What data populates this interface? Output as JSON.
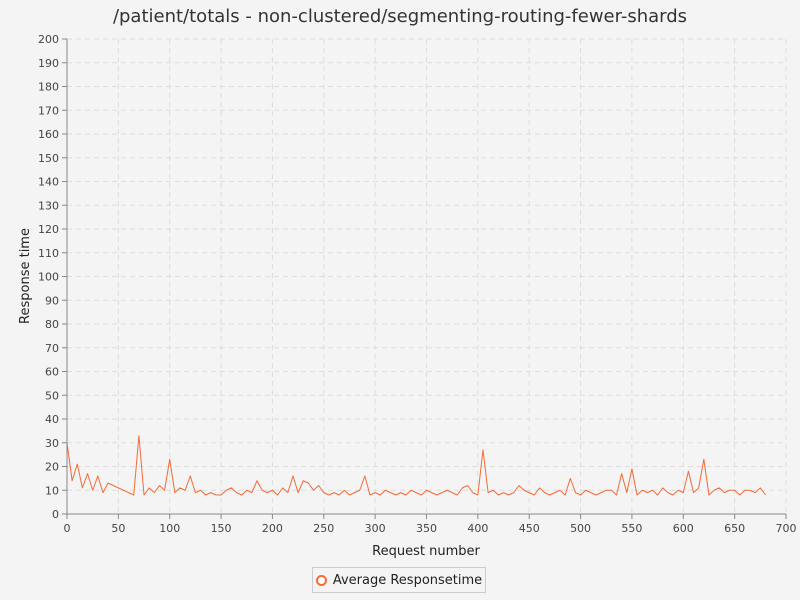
{
  "colors": {
    "series": "#f26b38",
    "grid": "#dddddd",
    "background": "#f4f4f4"
  },
  "chart_data": {
    "type": "line",
    "title": "/patient/totals - non-clustered/segmenting-routing-fewer-shards",
    "xlabel": "Request number",
    "ylabel": "Response time",
    "xlim": [
      0,
      700
    ],
    "ylim": [
      0,
      200
    ],
    "x_ticks": [
      0,
      50,
      100,
      150,
      200,
      250,
      300,
      350,
      400,
      450,
      500,
      550,
      600,
      650,
      700
    ],
    "y_ticks": [
      0,
      10,
      20,
      30,
      40,
      50,
      60,
      70,
      80,
      90,
      100,
      110,
      120,
      130,
      140,
      150,
      160,
      170,
      180,
      190,
      200
    ],
    "grid": true,
    "legend_position": "bottom-center",
    "series": [
      {
        "name": "Average Responsetime",
        "x_start": 0,
        "x_step": 5,
        "values": [
          30,
          14,
          21,
          11,
          17,
          10,
          16,
          9,
          13,
          12,
          11,
          10,
          9,
          8,
          33,
          8,
          11,
          9,
          12,
          10,
          23,
          9,
          11,
          10,
          16,
          9,
          10,
          8,
          9,
          8,
          8,
          10,
          11,
          9,
          8,
          10,
          9,
          14,
          10,
          9,
          10,
          8,
          11,
          9,
          16,
          9,
          14,
          13,
          10,
          12,
          9,
          8,
          9,
          8,
          10,
          8,
          9,
          10,
          16,
          8,
          9,
          8,
          10,
          9,
          8,
          9,
          8,
          10,
          9,
          8,
          10,
          9,
          8,
          9,
          10,
          9,
          8,
          11,
          12,
          9,
          8,
          27,
          9,
          10,
          8,
          9,
          8,
          9,
          12,
          10,
          9,
          8,
          11,
          9,
          8,
          9,
          10,
          8,
          15,
          9,
          8,
          10,
          9,
          8,
          9,
          10,
          10,
          8,
          17,
          9,
          19,
          8,
          10,
          9,
          10,
          8,
          11,
          9,
          8,
          10,
          9,
          18,
          9,
          11,
          23,
          8,
          10,
          11,
          9,
          10,
          10,
          8,
          10,
          10,
          9,
          11,
          8
        ]
      }
    ]
  }
}
